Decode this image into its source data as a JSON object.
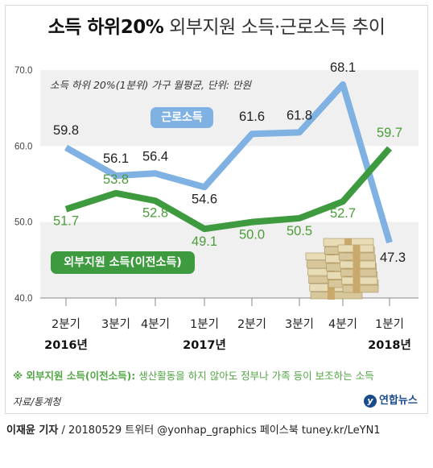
{
  "title_bold": "소득 하위20%",
  "title_rest": "외부지원 소득·근로소득 추이",
  "note": "소득 하위 20%(1분위) 가구 월평균, 단위: 만원",
  "chart_data": {
    "type": "line",
    "categories": [
      "2분기",
      "3분기",
      "4분기",
      "1분기",
      "2분기",
      "3분기",
      "4분기",
      "1분기"
    ],
    "year_labels": [
      {
        "index": 0,
        "label": "2016년"
      },
      {
        "index": 3,
        "label": "2017년"
      },
      {
        "index": 7,
        "label": "2018년"
      }
    ],
    "ylim": [
      40,
      70
    ],
    "yticks": [
      "40.0",
      "50.0",
      "60.0",
      "70.0"
    ],
    "grid": "alternating horizontal bands",
    "series": [
      {
        "name": "근로소득",
        "color": "#7fb2e3",
        "values": [
          59.8,
          56.1,
          56.4,
          54.6,
          61.6,
          61.8,
          68.1,
          47.3
        ],
        "labels": [
          "59.8",
          "56.1",
          "56.4",
          "54.6",
          "61.6",
          "61.8",
          "68.1",
          "47.3"
        ]
      },
      {
        "name": "외부지원 소득(이전소득)",
        "color": "#3e9a3e",
        "values": [
          51.7,
          53.8,
          52.8,
          49.1,
          50.0,
          50.5,
          52.7,
          59.7
        ],
        "labels": [
          "51.7",
          "53.8",
          "52.8",
          "49.1",
          "50.0",
          "50.5",
          "52.7",
          "59.7"
        ]
      }
    ]
  },
  "footnote_bold": "※ 외부지원 소득(이전소득):",
  "footnote_rest": " 생산활동을 하지 않아도 정부나 가족 등이 보조하는 소득",
  "source": "자료/통계청",
  "logo_text": "연합뉴스",
  "credit_bold": "이재윤 기자",
  "credit_rest": " / 20180529  트위터 @yonhap_graphics  페이스북 tuney.kr/LeYN1"
}
